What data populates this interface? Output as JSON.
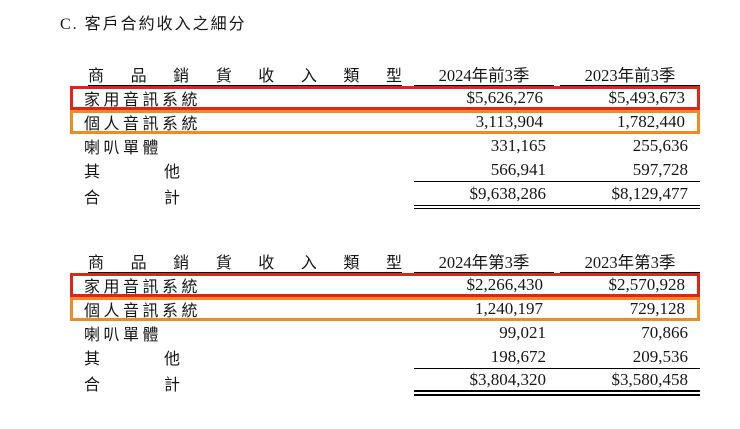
{
  "page": {
    "title": "C. 客戶合約收入之細分"
  },
  "colors": {
    "highlight_red": "#e02418",
    "highlight_orange": "#f08a23",
    "rule_black": "#000000"
  },
  "tables": [
    {
      "name": "first-three-quarters",
      "header": {
        "label": "商品銷貨收入類型",
        "col1": "2024年前3季",
        "col2": "2023年前3季"
      },
      "rows": [
        {
          "label": "家用音訊系統",
          "v1": "$5,626,276",
          "v2": "$5,493,673",
          "highlight": "red"
        },
        {
          "label": "個人音訊系統",
          "v1": "3,113,904",
          "v2": "1,782,440",
          "highlight": "orange"
        },
        {
          "label": "喇叭單體",
          "v1": "331,165",
          "v2": "255,636"
        },
        {
          "label": "其他",
          "v1": "566,941",
          "v2": "597,728",
          "rule_below": true
        },
        {
          "label": "合計",
          "v1": "$9,638,286",
          "v2": "$8,129,477",
          "total": true
        }
      ]
    },
    {
      "name": "third-quarter",
      "header": {
        "label": "商品銷貨收入類型",
        "col1": "2024年第3季",
        "col2": "2023年第3季"
      },
      "rows": [
        {
          "label": "家用音訊系統",
          "v1": "$2,266,430",
          "v2": "$2,570,928",
          "highlight": "red"
        },
        {
          "label": "個人音訊系統",
          "v1": "1,240,197",
          "v2": "729,128",
          "highlight": "orange"
        },
        {
          "label": "喇叭單體",
          "v1": "99,021",
          "v2": "70,866"
        },
        {
          "label": "其他",
          "v1": "198,672",
          "v2": "209,536",
          "rule_below": true
        },
        {
          "label": "合計",
          "v1": "$3,804,320",
          "v2": "$3,580,458",
          "total": true
        }
      ]
    }
  ]
}
